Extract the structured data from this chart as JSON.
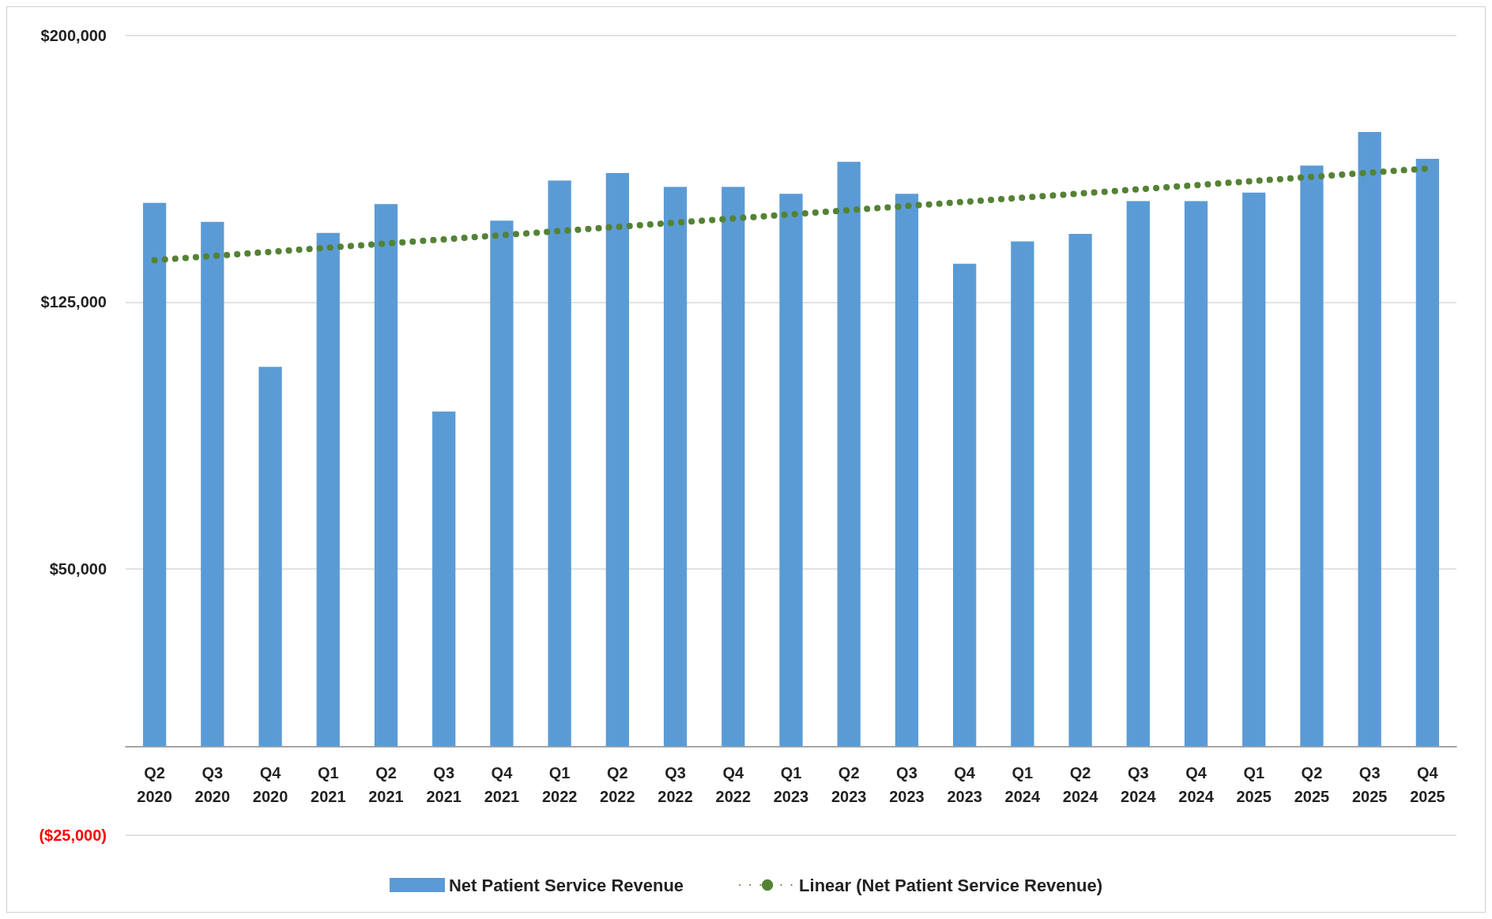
{
  "chart_data": {
    "type": "bar",
    "categories": [
      "Q2\n2020",
      "Q3\n2020",
      "Q4\n2020",
      "Q1\n2021",
      "Q2\n2021",
      "Q3\n2021",
      "Q4\n2021",
      "Q1\n2022",
      "Q2\n2022",
      "Q3\n2022",
      "Q4\n2022",
      "Q1\n2023",
      "Q2\n2023",
      "Q3\n2023",
      "Q4\n2023",
      "Q1\n2024",
      "Q2\n2024",
      "Q3\n2024",
      "Q4\n2024",
      "Q1\n2025",
      "Q2\n2025",
      "Q3\n2025",
      "Q4\n2025"
    ],
    "series": [
      {
        "name": "Net Patient Service Revenue",
        "color": "#5b9bd5",
        "values": [
          152900,
          147600,
          106800,
          144500,
          152600,
          94200,
          147900,
          159200,
          161300,
          157400,
          157400,
          155500,
          164500,
          155500,
          135800,
          142100,
          144200,
          153400,
          153400,
          155800,
          163400,
          172900,
          165300
        ]
      },
      {
        "name": "Linear (Net Patient Service Revenue)",
        "type": "line",
        "color": "#548235",
        "line_style": "dotted",
        "marker": "none",
        "x": [
          "Q2\n2020",
          "Q4\n2025"
        ],
        "values": [
          136800,
          162600
        ]
      }
    ],
    "ylim": [
      -25000,
      200000
    ],
    "yticks": [
      {
        "value": -25000,
        "label": "($25,000)"
      },
      {
        "value": 50000,
        "label": "$50,000"
      },
      {
        "value": 125000,
        "label": "$125,000"
      },
      {
        "value": 200000,
        "label": "$200,000"
      }
    ],
    "grid": "y",
    "legend": "bottom"
  }
}
